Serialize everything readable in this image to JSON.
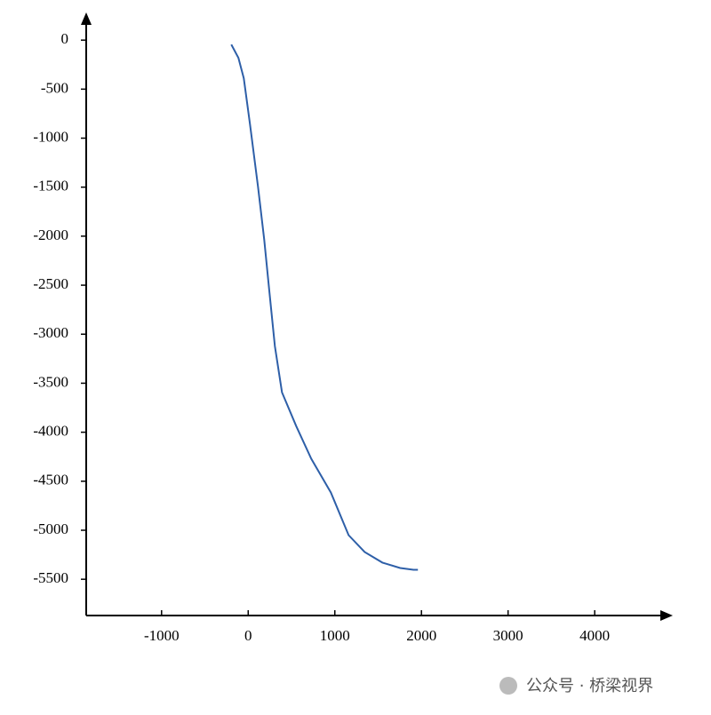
{
  "chart_data": {
    "type": "line",
    "x": [
      -195,
      -113,
      -51,
      21,
      113,
      185,
      246,
      308,
      390,
      554,
      728,
      954,
      1159,
      1344,
      1549,
      1754,
      1908,
      1959
    ],
    "series": [
      {
        "color": "#2e5fa8",
        "values": [
          -45,
          -181,
          -389,
          -860,
          -1493,
          -2036,
          -2579,
          -3122,
          -3593,
          -3937,
          -4271,
          -4615,
          -5050,
          -5222,
          -5330,
          -5385,
          -5403,
          -5403
        ]
      }
    ],
    "xlim": [
      -1870,
      4850
    ],
    "ylim": [
      -5870,
      210
    ],
    "xticks": [
      -1000,
      0,
      1000,
      2000,
      3000,
      4000
    ],
    "yticks": [
      0,
      -500,
      -1000,
      -1500,
      -2000,
      -2500,
      -3000,
      -3500,
      -4000,
      -4500,
      -5000,
      -5500
    ]
  },
  "watermark": "公众号 · 桥梁视界"
}
